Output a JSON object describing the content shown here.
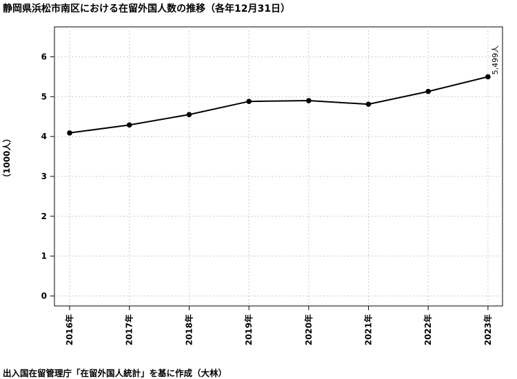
{
  "title": "静岡県浜松市南区における在留外国人数の推移（各年12月31日）",
  "source": "出入国在留管理庁「在留外国人統計」を基に作成（大林）",
  "chart_data": {
    "type": "line",
    "title": "静岡県浜松市南区における在留外国人数の推移（各年12月31日）",
    "ylabel": "（1000人）",
    "xlabel": "",
    "categories": [
      "2016年",
      "2017年",
      "2018年",
      "2019年",
      "2020年",
      "2021年",
      "2022年",
      "2023年"
    ],
    "values": [
      4.09,
      4.29,
      4.55,
      4.88,
      4.9,
      4.81,
      5.13,
      5.499
    ],
    "ylim": [
      -0.25,
      6.75
    ],
    "yticks": [
      0,
      1,
      2,
      3,
      4,
      5,
      6
    ],
    "grid": true,
    "annotations": [
      {
        "category": "2023年",
        "text": "5,499人"
      }
    ],
    "colors": {
      "line": "#000000",
      "grid": "#c8c8c8"
    }
  }
}
